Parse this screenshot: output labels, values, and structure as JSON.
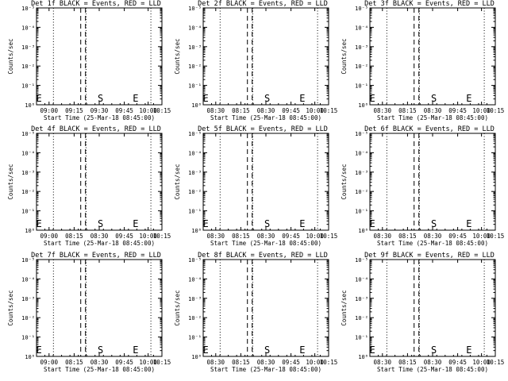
{
  "chart_data": [
    {
      "type": "line",
      "title": "Det 1f BLACK = Events, RED = LLD",
      "xlabel": "Start Time (25-Mar-18 08:45:00)",
      "ylabel": "Counts/sec",
      "x_tick_labels": [
        "09:00",
        "09:15",
        "09:30",
        "09:45",
        "10:00",
        "10:15"
      ],
      "y_tick_labels": [
        "10⁰",
        "10⁻¹",
        "10⁻²",
        "10⁻³",
        "10⁻⁴",
        "10⁻⁵"
      ],
      "markers": [
        "E",
        "S",
        "E"
      ],
      "series": []
    },
    {
      "type": "line",
      "title": "Det 2f BLACK = Events, RED = LLD",
      "xlabel": "Start Time (25-Mar-18 08:45:00)",
      "ylabel": "Counts/sec",
      "x_tick_labels": [
        "08:30",
        "08:15",
        "08:30",
        "09:45",
        "10:00",
        "10:15"
      ],
      "y_tick_labels": [
        "10⁰",
        "10⁻¹",
        "10⁻²",
        "10⁻³",
        "10⁻⁴",
        "10⁻⁵"
      ],
      "markers": [
        "E",
        "S",
        "E"
      ],
      "series": []
    },
    {
      "type": "line",
      "title": "Det 3f BLACK = Events, RED = LLD",
      "xlabel": "Start Time (25-Mar-18 08:45:00)",
      "ylabel": "Counts/sec",
      "x_tick_labels": [
        "08:30",
        "08:15",
        "08:30",
        "09:45",
        "10:00",
        "10:15"
      ],
      "y_tick_labels": [
        "10⁰",
        "10⁻¹",
        "10⁻²",
        "10⁻³",
        "10⁻⁴",
        "10⁻⁵"
      ],
      "markers": [
        "E",
        "S",
        "E"
      ],
      "series": []
    },
    {
      "type": "line",
      "title": "Det 4f BLACK = Events, RED = LLD",
      "xlabel": "Start Time (25-Mar-18 08:45:00)",
      "ylabel": "Counts/sec",
      "x_tick_labels": [
        "09:00",
        "08:15",
        "08:30",
        "09:45",
        "10:00",
        "10:15"
      ],
      "y_tick_labels": [
        "10⁰",
        "10⁻¹",
        "10⁻²",
        "10⁻³",
        "10⁻⁴",
        "10⁻⁵"
      ],
      "markers": [
        "E",
        "S",
        "E"
      ],
      "series": []
    },
    {
      "type": "line",
      "title": "Det 5f BLACK = Events, RED = LLD",
      "xlabel": "Start Time (25-Mar-18 08:45:00)",
      "ylabel": "Counts/sec",
      "x_tick_labels": [
        "08:30",
        "08:15",
        "08:30",
        "09:45",
        "10:00",
        "10:15"
      ],
      "y_tick_labels": [
        "10⁰",
        "10⁻¹",
        "10⁻²",
        "10⁻³",
        "10⁻⁴",
        "10⁻⁵"
      ],
      "markers": [
        "E",
        "S",
        "E"
      ],
      "series": []
    },
    {
      "type": "line",
      "title": "Det 6f BLACK = Events, RED = LLD",
      "xlabel": "Start Time (25-Mar-18 08:45:00)",
      "ylabel": "Counts/sec",
      "x_tick_labels": [
        "08:30",
        "08:15",
        "08:30",
        "09:45",
        "10:00",
        "10:15"
      ],
      "y_tick_labels": [
        "10⁰",
        "10⁻¹",
        "10⁻²",
        "10⁻³",
        "10⁻⁴",
        "10⁻⁵"
      ],
      "markers": [
        "E",
        "S",
        "E"
      ],
      "series": []
    },
    {
      "type": "line",
      "title": "Det 7f BLACK = Events, RED = LLD",
      "xlabel": "Start Time (25-Mar-18 08:45:00)",
      "ylabel": "Counts/sec",
      "x_tick_labels": [
        "09:00",
        "08:15",
        "08:30",
        "09:45",
        "10:00",
        "10:15"
      ],
      "y_tick_labels": [
        "10⁰",
        "10⁻¹",
        "10⁻²",
        "10⁻³",
        "10⁻⁴",
        "10⁻⁵"
      ],
      "markers": [
        "E",
        "S",
        "E"
      ],
      "series": []
    },
    {
      "type": "line",
      "title": "Det 8f BLACK = Events, RED = LLD",
      "xlabel": "Start Time (25-Mar-18 08:45:00)",
      "ylabel": "Counts/sec",
      "x_tick_labels": [
        "08:30",
        "08:15",
        "08:30",
        "09:45",
        "10:00",
        "10:15"
      ],
      "y_tick_labels": [
        "10⁰",
        "10⁻¹",
        "10⁻²",
        "10⁻³",
        "10⁻⁴",
        "10⁻⁵"
      ],
      "markers": [
        "E",
        "S",
        "E"
      ],
      "series": []
    },
    {
      "type": "line",
      "title": "Det 9f BLACK = Events, RED = LLD",
      "xlabel": "Start Time (25-Mar-18 08:45:00)",
      "ylabel": "Counts/sec",
      "x_tick_labels": [
        "08:30",
        "08:15",
        "08:30",
        "09:45",
        "10:00",
        "10:15"
      ],
      "y_tick_labels": [
        "10⁰",
        "10⁻¹",
        "10⁻²",
        "10⁻³",
        "10⁻⁴",
        "10⁻⁵"
      ],
      "markers": [
        "E",
        "S",
        "E"
      ],
      "series": []
    }
  ]
}
